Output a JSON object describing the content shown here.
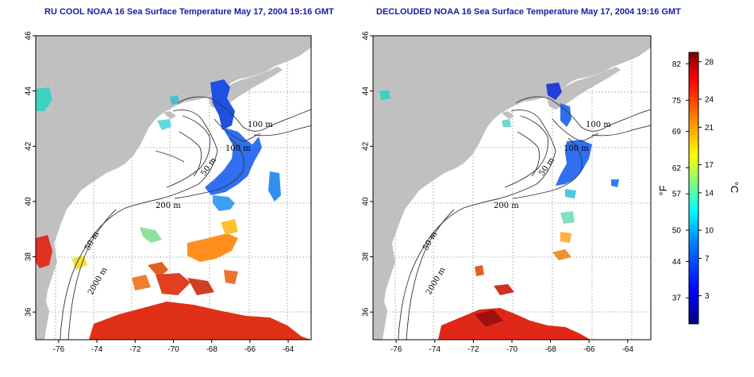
{
  "panels": [
    {
      "id": "left",
      "title": "RU COOL NOAA 16 Sea Surface Temperature May 17, 2004 19:16 GMT",
      "contour_labels": [
        "100 m",
        "100 m",
        "50 m",
        "200 m",
        "50 m",
        "2000 m"
      ]
    },
    {
      "id": "right",
      "title": "DECLOUDED NOAA 16 Sea Surface Temperature May 17, 2004 19:16 GMT",
      "contour_labels": [
        "100 m",
        "100 m",
        "50 m",
        "200 m",
        "50 m",
        "2000 m"
      ]
    }
  ],
  "axes": {
    "x_ticks": [
      "-76",
      "-74",
      "-72",
      "-70",
      "-68",
      "-66",
      "-64"
    ],
    "x_values": [
      -76,
      -74,
      -72,
      -70,
      -68,
      -66,
      -64
    ],
    "y_ticks": [
      "46",
      "44",
      "42",
      "40",
      "38",
      "36"
    ],
    "y_values": [
      46,
      44,
      42,
      40,
      38,
      36
    ],
    "lon_range": [
      -77.2,
      -62.8
    ],
    "lat_range": [
      35.0,
      46.0
    ]
  },
  "colorbar": {
    "fahrenheit_label": "°F",
    "celsius_label": "°C",
    "fahrenheit_ticks": [
      "82",
      "75",
      "69",
      "62",
      "57",
      "50",
      "44",
      "37"
    ],
    "fahrenheit_values": [
      82,
      75,
      69,
      62,
      57,
      50,
      44,
      37
    ],
    "celsius_ticks": [
      "28",
      "24",
      "21",
      "17",
      "14",
      "10",
      "7",
      "3"
    ],
    "celsius_values": [
      28,
      24,
      21,
      17,
      14,
      10,
      7,
      3
    ],
    "range_c": [
      0,
      29
    ],
    "colors": [
      "#00007f",
      "#0000ff",
      "#0080ff",
      "#00ffff",
      "#80ff80",
      "#ffff00",
      "#ff8000",
      "#ff0000",
      "#7f0000"
    ]
  },
  "colors": {
    "land": "#c0c0c0",
    "ocean": "#ffffff",
    "grid": "#b8b8b8",
    "title": "#1a1aa8"
  }
}
